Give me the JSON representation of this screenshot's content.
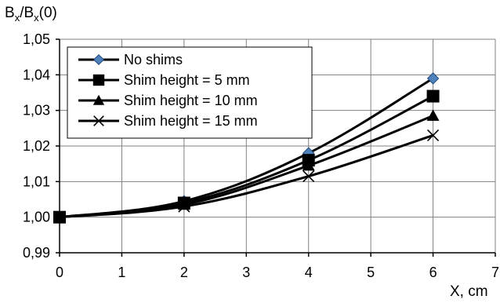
{
  "chart_data": {
    "type": "line",
    "title": "",
    "ylabel_parts": {
      "base": "B",
      "sub": "x",
      "mid": "/B",
      "sub2": "x",
      "tail": "(0)"
    },
    "xlabel": "X, cm",
    "xlim": [
      0,
      7
    ],
    "ylim": [
      0.99,
      1.05
    ],
    "xticks": [
      "0",
      "1",
      "2",
      "3",
      "4",
      "5",
      "6",
      "7"
    ],
    "yticks": [
      "0,99",
      "1,00",
      "1,01",
      "1,02",
      "1,03",
      "1,04",
      "1,05"
    ],
    "grid": true,
    "legend_position": "top-left",
    "series": [
      {
        "name": "No shims",
        "marker": "diamond",
        "x": [
          0,
          2,
          4,
          6
        ],
        "y": [
          1.0,
          1.0045,
          1.018,
          1.039
        ]
      },
      {
        "name": "Shim height = 5 mm",
        "marker": "square",
        "x": [
          0,
          2,
          4,
          6
        ],
        "y": [
          1.0,
          1.004,
          1.016,
          1.034
        ]
      },
      {
        "name": "Shim height = 10 mm",
        "marker": "triangle",
        "x": [
          0,
          2,
          4,
          6
        ],
        "y": [
          1.0,
          1.0035,
          1.0145,
          1.0285
        ]
      },
      {
        "name": "Shim height = 15 mm",
        "marker": "x",
        "x": [
          0,
          2,
          4,
          6
        ],
        "y": [
          1.0,
          1.003,
          1.0115,
          1.023
        ]
      }
    ],
    "colors": {
      "series_line": "#000000",
      "diamond_fill": "#4f81bd",
      "grid": "#808080"
    }
  }
}
